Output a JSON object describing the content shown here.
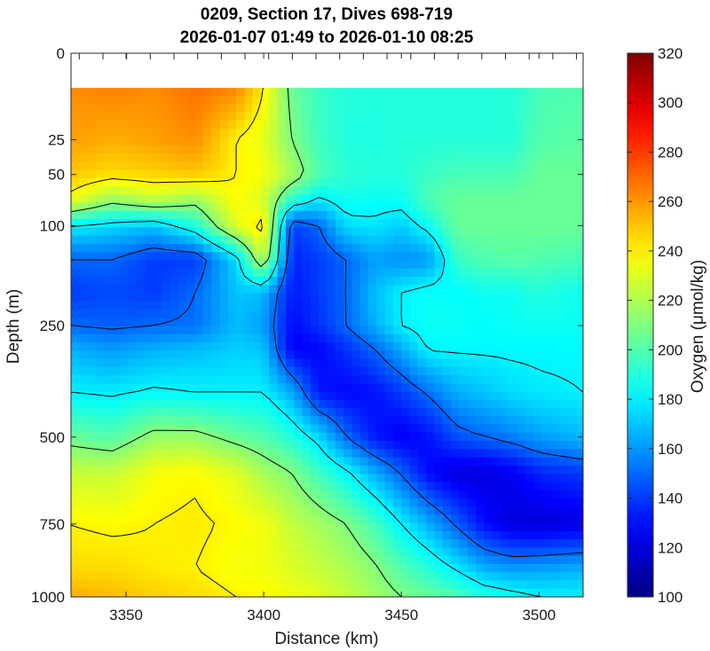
{
  "chart_data": {
    "type": "heatmap",
    "title": [
      "0209, Section 17, Dives 698-719",
      "2026-01-07 01:49 to 2026-01-10 08:25"
    ],
    "xlabel": "Distance (km)",
    "ylabel": "Depth (m)",
    "colorbar_label": "Oxygen (μmol/kg)",
    "xlim": [
      3330,
      3516
    ],
    "ylim": [
      0,
      1000
    ],
    "x_ticks": [
      3350,
      3400,
      3450,
      3500
    ],
    "y_ticks": [
      0,
      25,
      50,
      100,
      250,
      500,
      750,
      1000
    ],
    "clim": [
      100,
      320
    ],
    "colorbar_ticks": [
      100,
      120,
      140,
      160,
      180,
      200,
      220,
      240,
      260,
      280,
      300,
      320
    ],
    "colormap": "jet",
    "data_top_depth": 10,
    "contour_levels": [
      150,
      180,
      210,
      240
    ],
    "x": [
      3330,
      3345,
      3360,
      3375,
      3390,
      3400,
      3410,
      3420,
      3430,
      3440,
      3450,
      3460,
      3470,
      3480,
      3490,
      3500,
      3516
    ],
    "depth": [
      10,
      25,
      50,
      75,
      100,
      150,
      200,
      250,
      300,
      400,
      500,
      600,
      750,
      900,
      1000
    ],
    "values": [
      [
        262,
        265,
        262,
        268,
        264,
        240,
        205,
        195,
        190,
        190,
        190,
        190,
        190,
        190,
        190,
        198,
        200
      ],
      [
        258,
        255,
        258,
        262,
        240,
        232,
        210,
        195,
        190,
        188,
        190,
        190,
        190,
        190,
        190,
        200,
        202
      ],
      [
        250,
        245,
        247,
        250,
        240,
        236,
        220,
        200,
        192,
        190,
        190,
        195,
        198,
        198,
        198,
        205,
        205
      ],
      [
        235,
        215,
        225,
        215,
        238,
        228,
        192,
        178,
        186,
        184,
        185,
        200,
        205,
        205,
        205,
        205,
        205
      ],
      [
        180,
        175,
        170,
        190,
        232,
        245,
        140,
        150,
        176,
        178,
        172,
        185,
        205,
        205,
        205,
        205,
        205
      ],
      [
        150,
        150,
        140,
        140,
        175,
        228,
        135,
        140,
        150,
        162,
        158,
        160,
        195,
        200,
        202,
        200,
        198
      ],
      [
        140,
        143,
        140,
        150,
        170,
        168,
        132,
        140,
        150,
        168,
        180,
        185,
        182,
        185,
        185,
        190,
        185
      ],
      [
        150,
        148,
        150,
        152,
        168,
        162,
        128,
        138,
        150,
        165,
        180,
        185,
        185,
        182,
        185,
        185,
        185
      ],
      [
        165,
        160,
        165,
        168,
        172,
        170,
        125,
        128,
        138,
        150,
        165,
        182,
        182,
        182,
        182,
        182,
        182
      ],
      [
        180,
        178,
        182,
        180,
        180,
        180,
        165,
        132,
        128,
        130,
        140,
        152,
        165,
        170,
        175,
        178,
        180
      ],
      [
        205,
        200,
        215,
        215,
        205,
        200,
        190,
        175,
        150,
        132,
        125,
        130,
        145,
        150,
        155,
        162,
        168
      ],
      [
        225,
        225,
        235,
        238,
        230,
        218,
        210,
        195,
        182,
        165,
        148,
        128,
        120,
        120,
        125,
        135,
        140
      ],
      [
        240,
        238,
        240,
        242,
        238,
        235,
        225,
        218,
        210,
        198,
        180,
        165,
        148,
        130,
        120,
        118,
        122
      ],
      [
        245,
        245,
        242,
        240,
        235,
        235,
        230,
        225,
        220,
        212,
        200,
        190,
        178,
        165,
        160,
        162,
        165
      ],
      [
        255,
        252,
        248,
        245,
        240,
        238,
        235,
        232,
        225,
        218,
        210,
        205,
        200,
        190,
        185,
        180,
        180
      ]
    ]
  }
}
